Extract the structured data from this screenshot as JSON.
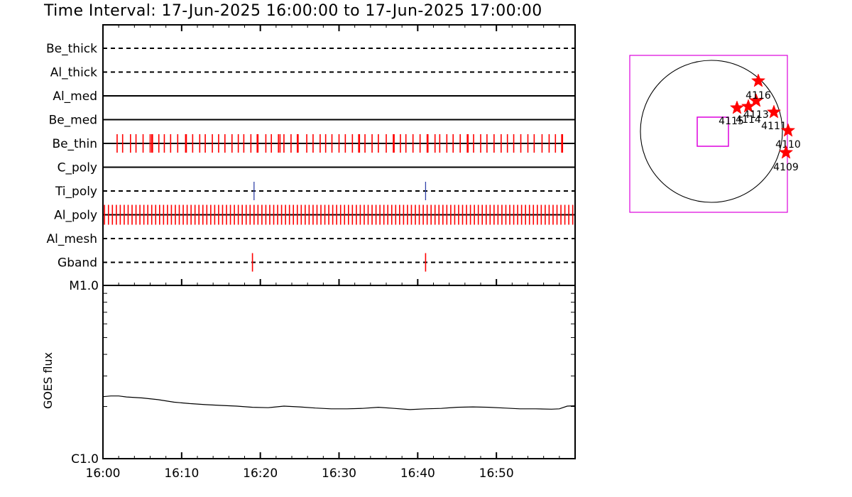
{
  "title": "Time Interval: 17-Jun-2025 16:00:00 to 17-Jun-2025 17:00:00",
  "colors": {
    "axis": "#000000",
    "event_red": "#ff0000",
    "event_blue": "#3344aa",
    "map_box": "#dd00dd",
    "star": "#ff0000"
  },
  "chart_data": [
    {
      "type": "timeline",
      "x_range_minutes": [
        0,
        60
      ],
      "x_tick_labels": [
        "16:00",
        "16:10",
        "16:20",
        "16:30",
        "16:40",
        "16:50"
      ],
      "filters": [
        {
          "name": "Be_thick",
          "line": "dashed",
          "events": []
        },
        {
          "name": "Al_thick",
          "line": "dashed",
          "events": []
        },
        {
          "name": "Al_med",
          "line": "solid",
          "events": []
        },
        {
          "name": "Be_med",
          "line": "solid",
          "events": []
        },
        {
          "name": "Be_thin",
          "line": "solid",
          "color": "#ff0000",
          "events": [
            1.8,
            2.5,
            3.5,
            4.2,
            5.1,
            6.0,
            6.2,
            6.3,
            7.1,
            7.8,
            8.6,
            9.5,
            10.5,
            10.6,
            11.4,
            12.3,
            13.0,
            13.9,
            14.7,
            15.5,
            16.4,
            17.2,
            17.9,
            18.8,
            19.6,
            19.7,
            20.7,
            21.4,
            22.3,
            22.5,
            23.0,
            23.9,
            24.7,
            24.8,
            25.9,
            26.7,
            27.6,
            28.3,
            29.1,
            30.0,
            30.8,
            31.7,
            32.5,
            32.6,
            33.3,
            34.2,
            35.0,
            36.0,
            36.9,
            37.0,
            37.8,
            38.5,
            39.4,
            40.3,
            41.2,
            41.3,
            42.2,
            42.8,
            43.7,
            44.5,
            45.4,
            46.3,
            46.4,
            47.1,
            48.0,
            48.8,
            49.7,
            50.6,
            51.4,
            52.2,
            53.1,
            54.0,
            54.8,
            55.8,
            56.7,
            57.5,
            58.3,
            58.4
          ]
        },
        {
          "name": "C_poly",
          "line": "solid",
          "events": []
        },
        {
          "name": "Ti_poly",
          "line": "dashed",
          "color": "#3344aa",
          "events": [
            19.2,
            41.0
          ]
        },
        {
          "name": "Al_poly",
          "line": "solid",
          "color": "#ff0000",
          "events": "dense",
          "spacing_minutes": 0.5
        },
        {
          "name": "Al_mesh",
          "line": "dashed",
          "events": []
        },
        {
          "name": "Gband",
          "line": "dashed",
          "color": "#ff0000",
          "events": [
            19.0,
            41.0
          ]
        }
      ]
    },
    {
      "type": "line",
      "ylabel": "GOES flux",
      "y_scale": "log",
      "y_range_flux": [
        1e-06,
        1e-05
      ],
      "y_tick_labels": [
        "C1.0",
        "M1.0"
      ],
      "x_range_minutes": [
        0,
        60
      ],
      "x_tick_labels": [
        "16:00",
        "16:10",
        "16:20",
        "16:30",
        "16:40",
        "16:50"
      ],
      "series": [
        {
          "x": [
            0,
            1,
            2,
            3,
            5,
            7,
            9,
            11,
            13,
            15,
            17,
            19,
            21,
            23,
            25,
            27,
            29,
            31,
            33,
            35,
            37,
            39,
            41,
            43,
            45,
            47,
            49,
            51,
            53,
            55,
            57,
            58,
            59,
            60
          ],
          "y": [
            2.28e-06,
            2.3e-06,
            2.3e-06,
            2.27e-06,
            2.24e-06,
            2.19e-06,
            2.12e-06,
            2.08e-06,
            2.05e-06,
            2.03e-06,
            2.01e-06,
            1.98e-06,
            1.97e-06,
            2.01e-06,
            1.99e-06,
            1.96e-06,
            1.94e-06,
            1.94e-06,
            1.95e-06,
            1.98e-06,
            1.95e-06,
            1.92e-06,
            1.94e-06,
            1.95e-06,
            1.98e-06,
            1.99e-06,
            1.98e-06,
            1.96e-06,
            1.94e-06,
            1.94e-06,
            1.93e-06,
            1.94e-06,
            2.01e-06,
            2.02e-06
          ]
        }
      ]
    },
    {
      "type": "scatter",
      "description_kind": "solar disk map",
      "points": [
        {
          "label": "4115",
          "x": 0.36,
          "y": 0.33
        },
        {
          "label": "4114",
          "x": 0.52,
          "y": 0.35
        },
        {
          "label": "4113",
          "x": 0.63,
          "y": 0.43
        },
        {
          "label": "4111",
          "x": 0.88,
          "y": 0.27
        },
        {
          "label": "4110",
          "x": 1.08,
          "y": 0.01
        },
        {
          "label": "4116",
          "x": 0.66,
          "y": 0.71
        },
        {
          "label": "4109",
          "x": 1.05,
          "y": -0.3
        }
      ]
    }
  ]
}
